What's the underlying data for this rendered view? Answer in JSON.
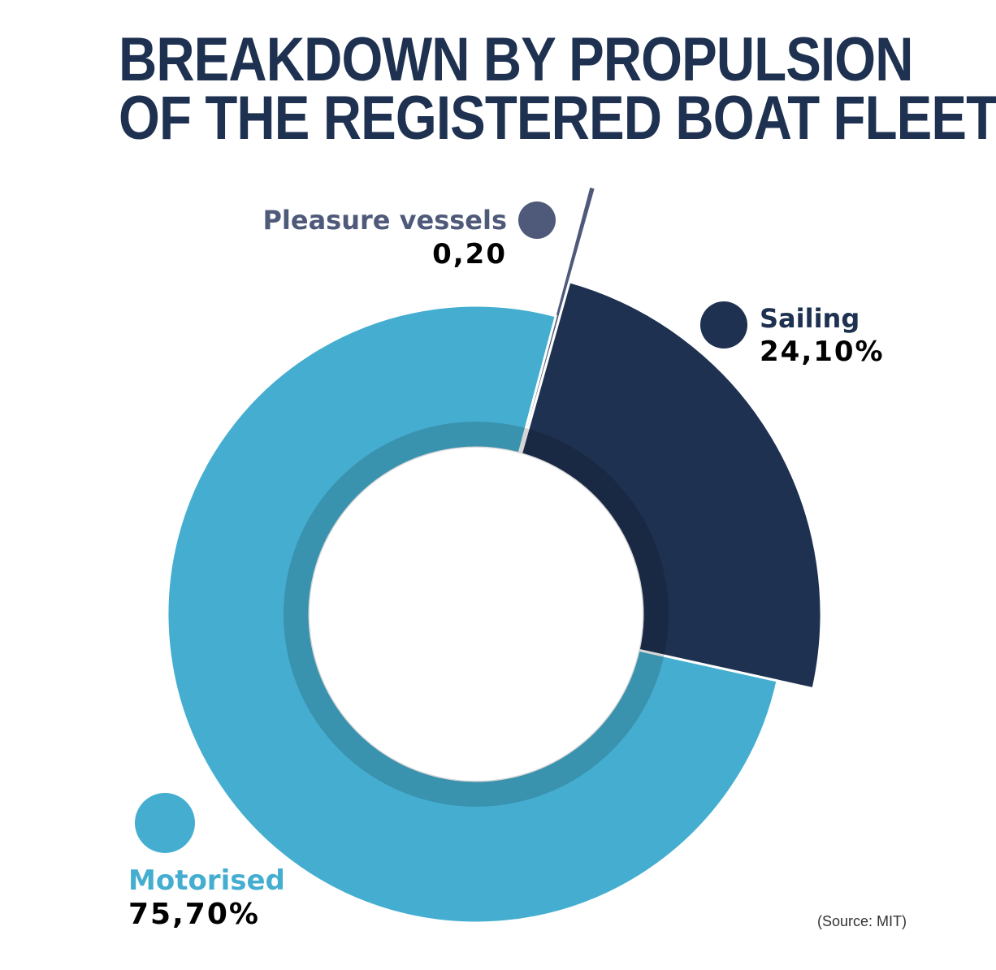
{
  "chart_data": {
    "type": "pie",
    "style": "donut",
    "title_lines": [
      "BREAKDOWN BY PROPULSION",
      "OF THE REGISTERED BOAT FLEET"
    ],
    "slices": [
      {
        "name": "Pleasure vessels",
        "value": 0.2,
        "label": "0,20",
        "color": "#4f5a7a"
      },
      {
        "name": "Sailing",
        "value": 24.1,
        "label": "24,10%",
        "color": "#1e3150"
      },
      {
        "name": "Motorised",
        "value": 75.7,
        "label": "75,70%",
        "color": "#45aed0"
      }
    ],
    "source": "(Source: MIT)"
  }
}
